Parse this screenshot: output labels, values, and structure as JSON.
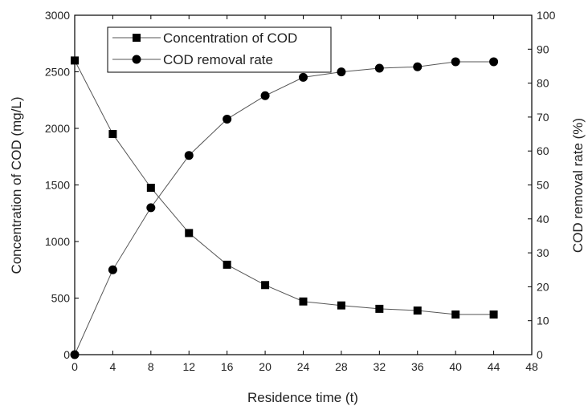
{
  "chart_data": {
    "type": "line",
    "x": [
      0,
      4,
      8,
      12,
      16,
      20,
      24,
      28,
      32,
      36,
      40,
      44
    ],
    "xlabel": "Residence time (t)",
    "ylabel": "Concentration of COD (mg/L)",
    "y2label": "COD removal rate (%)",
    "xlim": [
      0,
      48
    ],
    "ylim": [
      0,
      3000
    ],
    "y2lim": [
      0,
      100
    ],
    "xticks": [
      0,
      4,
      8,
      12,
      16,
      20,
      24,
      28,
      32,
      36,
      40,
      44,
      48
    ],
    "yticks": [
      0,
      500,
      1000,
      1500,
      2000,
      2500,
      3000
    ],
    "y2ticks": [
      0,
      10,
      20,
      30,
      40,
      50,
      60,
      70,
      80,
      90,
      100
    ],
    "grid": false,
    "legend_position": "top-left",
    "series": [
      {
        "name": "Concentration of COD",
        "axis": "left",
        "marker": "square",
        "values": [
          2600,
          1950,
          1475,
          1075,
          795,
          615,
          470,
          435,
          405,
          390,
          355,
          355
        ]
      },
      {
        "name": "COD removal rate",
        "axis": "right",
        "marker": "circle",
        "values": [
          0,
          25,
          43.3,
          58.7,
          69.4,
          76.3,
          81.7,
          83.3,
          84.4,
          84.8,
          86.3,
          86.3
        ]
      }
    ]
  }
}
